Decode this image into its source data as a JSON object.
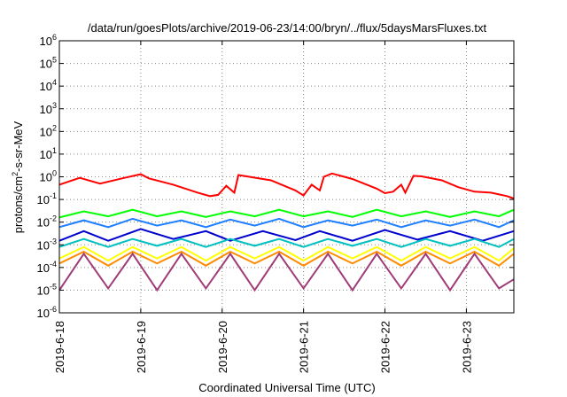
{
  "chart_data": {
    "type": "line",
    "title": "/data/run/goesPlots/archive/2019-06-23/14:00/bryn/../flux/5daysMarsFluxes.txt",
    "xlabel": "Coordinated Universal Time (UTC)",
    "ylabel_parts": [
      "protons/cm",
      "2",
      "-s-sr-MeV"
    ],
    "x_range": [
      "2019-06-18T00:00",
      "2019-06-23T14:00"
    ],
    "x_ticks": [
      "2019-6-18",
      "2019-6-19",
      "2019-6-20",
      "2019-6-21",
      "2019-6-22",
      "2019-6-23"
    ],
    "y_scale": "log",
    "y_range": [
      1e-06,
      1000000.0
    ],
    "y_ticks": [
      {
        "base": "10",
        "exp": "-6",
        "value": 1e-06
      },
      {
        "base": "10",
        "exp": "-5",
        "value": 1e-05
      },
      {
        "base": "10",
        "exp": "-4",
        "value": 0.0001
      },
      {
        "base": "10",
        "exp": "-3",
        "value": 0.001
      },
      {
        "base": "10",
        "exp": "-2",
        "value": 0.01
      },
      {
        "base": "10",
        "exp": "-1",
        "value": 0.1
      },
      {
        "base": "10",
        "exp": "0",
        "value": 1
      },
      {
        "base": "10",
        "exp": "1",
        "value": 10
      },
      {
        "base": "10",
        "exp": "2",
        "value": 100
      },
      {
        "base": "10",
        "exp": "3",
        "value": 1000
      },
      {
        "base": "10",
        "exp": "4",
        "value": 10000
      },
      {
        "base": "10",
        "exp": "5",
        "value": 100000
      },
      {
        "base": "10",
        "exp": "6",
        "value": 1000000
      }
    ],
    "grid": true,
    "series": [
      {
        "color": "#ff0000",
        "values": [
          [
            0.0,
            0.45
          ],
          [
            0.25,
            0.9
          ],
          [
            0.5,
            0.5
          ],
          [
            0.8,
            0.9
          ],
          [
            1.0,
            1.3
          ],
          [
            1.1,
            0.85
          ],
          [
            1.4,
            0.45
          ],
          [
            1.7,
            0.2
          ],
          [
            1.85,
            0.14
          ],
          [
            1.95,
            0.16
          ],
          [
            2.05,
            0.4
          ],
          [
            2.15,
            0.2
          ],
          [
            2.2,
            1.2
          ],
          [
            2.3,
            1.05
          ],
          [
            2.6,
            0.7
          ],
          [
            2.9,
            0.25
          ],
          [
            3.0,
            0.15
          ],
          [
            3.1,
            0.45
          ],
          [
            3.2,
            0.25
          ],
          [
            3.25,
            1.0
          ],
          [
            3.35,
            1.4
          ],
          [
            3.6,
            0.8
          ],
          [
            3.9,
            0.3
          ],
          [
            4.0,
            0.19
          ],
          [
            4.1,
            0.22
          ],
          [
            4.2,
            0.45
          ],
          [
            4.25,
            0.2
          ],
          [
            4.35,
            1.1
          ],
          [
            4.45,
            1.05
          ],
          [
            4.7,
            0.7
          ],
          [
            4.9,
            0.35
          ],
          [
            5.1,
            0.22
          ],
          [
            5.3,
            0.2
          ],
          [
            5.5,
            0.14
          ],
          [
            5.583,
            0.11
          ]
        ]
      },
      {
        "color": "#00ff00",
        "values": [
          [
            0.0,
            0.016
          ],
          [
            0.3,
            0.03
          ],
          [
            0.6,
            0.018
          ],
          [
            0.9,
            0.035
          ],
          [
            1.2,
            0.018
          ],
          [
            1.5,
            0.03
          ],
          [
            1.8,
            0.017
          ],
          [
            2.1,
            0.03
          ],
          [
            2.4,
            0.018
          ],
          [
            2.7,
            0.035
          ],
          [
            3.0,
            0.018
          ],
          [
            3.3,
            0.03
          ],
          [
            3.6,
            0.017
          ],
          [
            3.9,
            0.035
          ],
          [
            4.2,
            0.018
          ],
          [
            4.5,
            0.03
          ],
          [
            4.8,
            0.017
          ],
          [
            5.1,
            0.03
          ],
          [
            5.4,
            0.018
          ],
          [
            5.583,
            0.035
          ]
        ]
      },
      {
        "color": "#1e7fff",
        "values": [
          [
            0.0,
            0.006
          ],
          [
            0.3,
            0.012
          ],
          [
            0.6,
            0.006
          ],
          [
            0.9,
            0.014
          ],
          [
            1.2,
            0.007
          ],
          [
            1.5,
            0.012
          ],
          [
            1.8,
            0.006
          ],
          [
            2.1,
            0.013
          ],
          [
            2.4,
            0.007
          ],
          [
            2.7,
            0.014
          ],
          [
            3.0,
            0.006
          ],
          [
            3.3,
            0.012
          ],
          [
            3.6,
            0.007
          ],
          [
            3.9,
            0.013
          ],
          [
            4.2,
            0.006
          ],
          [
            4.5,
            0.012
          ],
          [
            4.8,
            0.007
          ],
          [
            5.1,
            0.013
          ],
          [
            5.4,
            0.006
          ],
          [
            5.583,
            0.012
          ]
        ]
      },
      {
        "color": "#0000d0",
        "values": [
          [
            0.0,
            0.0015
          ],
          [
            0.3,
            0.004
          ],
          [
            0.6,
            0.0015
          ],
          [
            1.0,
            0.005
          ],
          [
            1.4,
            0.0018
          ],
          [
            1.8,
            0.004
          ],
          [
            2.1,
            0.0015
          ],
          [
            2.5,
            0.004
          ],
          [
            2.9,
            0.0016
          ],
          [
            3.2,
            0.004
          ],
          [
            3.6,
            0.0015
          ],
          [
            4.0,
            0.0045
          ],
          [
            4.4,
            0.0017
          ],
          [
            4.8,
            0.004
          ],
          [
            5.2,
            0.0015
          ],
          [
            5.583,
            0.004
          ]
        ]
      },
      {
        "color": "#00c0c0",
        "values": [
          [
            0.0,
            0.0008
          ],
          [
            0.3,
            0.0018
          ],
          [
            0.6,
            0.0008
          ],
          [
            0.9,
            0.0018
          ],
          [
            1.2,
            0.0009
          ],
          [
            1.5,
            0.0018
          ],
          [
            1.8,
            0.0008
          ],
          [
            2.1,
            0.0018
          ],
          [
            2.4,
            0.0009
          ],
          [
            2.7,
            0.0018
          ],
          [
            3.0,
            0.0008
          ],
          [
            3.3,
            0.0018
          ],
          [
            3.6,
            0.0009
          ],
          [
            3.9,
            0.0018
          ],
          [
            4.2,
            0.0008
          ],
          [
            4.5,
            0.0018
          ],
          [
            4.8,
            0.0009
          ],
          [
            5.1,
            0.0018
          ],
          [
            5.4,
            0.0008
          ],
          [
            5.583,
            0.0018
          ]
        ]
      },
      {
        "color": "#ffff00",
        "values": [
          [
            0.0,
            0.00025
          ],
          [
            0.3,
            0.0008
          ],
          [
            0.6,
            0.0002
          ],
          [
            0.9,
            0.0008
          ],
          [
            1.2,
            0.00025
          ],
          [
            1.5,
            0.0008
          ],
          [
            1.8,
            0.0002
          ],
          [
            2.1,
            0.0008
          ],
          [
            2.4,
            0.00025
          ],
          [
            2.7,
            0.0008
          ],
          [
            3.0,
            0.0002
          ],
          [
            3.3,
            0.0008
          ],
          [
            3.6,
            0.00025
          ],
          [
            3.9,
            0.0008
          ],
          [
            4.2,
            0.0002
          ],
          [
            4.5,
            0.0008
          ],
          [
            4.8,
            0.00025
          ],
          [
            5.1,
            0.0008
          ],
          [
            5.4,
            0.0002
          ],
          [
            5.583,
            0.0007
          ]
        ]
      },
      {
        "color": "#ff8c00",
        "values": [
          [
            0.0,
            0.00015
          ],
          [
            0.3,
            0.0005
          ],
          [
            0.6,
            0.00012
          ],
          [
            0.9,
            0.0005
          ],
          [
            1.2,
            0.00015
          ],
          [
            1.5,
            0.0005
          ],
          [
            1.8,
            0.00012
          ],
          [
            2.1,
            0.0005
          ],
          [
            2.4,
            0.00015
          ],
          [
            2.7,
            0.0005
          ],
          [
            3.0,
            0.00012
          ],
          [
            3.3,
            0.0005
          ],
          [
            3.6,
            0.00015
          ],
          [
            3.9,
            0.0005
          ],
          [
            4.2,
            0.00012
          ],
          [
            4.5,
            0.0005
          ],
          [
            4.8,
            0.00015
          ],
          [
            5.1,
            0.0005
          ],
          [
            5.4,
            0.00012
          ],
          [
            5.583,
            0.0004
          ]
        ]
      },
      {
        "color": "#a03c78",
        "values": [
          [
            0.0,
            1e-05
          ],
          [
            0.3,
            0.0004
          ],
          [
            0.6,
            1.2e-05
          ],
          [
            0.9,
            0.0004
          ],
          [
            1.2,
            1e-05
          ],
          [
            1.5,
            0.0004
          ],
          [
            1.8,
            1.2e-05
          ],
          [
            2.1,
            0.0004
          ],
          [
            2.4,
            1e-05
          ],
          [
            2.7,
            0.0004
          ],
          [
            3.0,
            1.2e-05
          ],
          [
            3.3,
            0.0004
          ],
          [
            3.6,
            1e-05
          ],
          [
            3.9,
            0.0004
          ],
          [
            4.2,
            1.2e-05
          ],
          [
            4.5,
            0.0004
          ],
          [
            4.8,
            1e-05
          ],
          [
            5.1,
            0.0004
          ],
          [
            5.4,
            1.2e-05
          ],
          [
            5.583,
            3e-05
          ]
        ]
      }
    ]
  }
}
